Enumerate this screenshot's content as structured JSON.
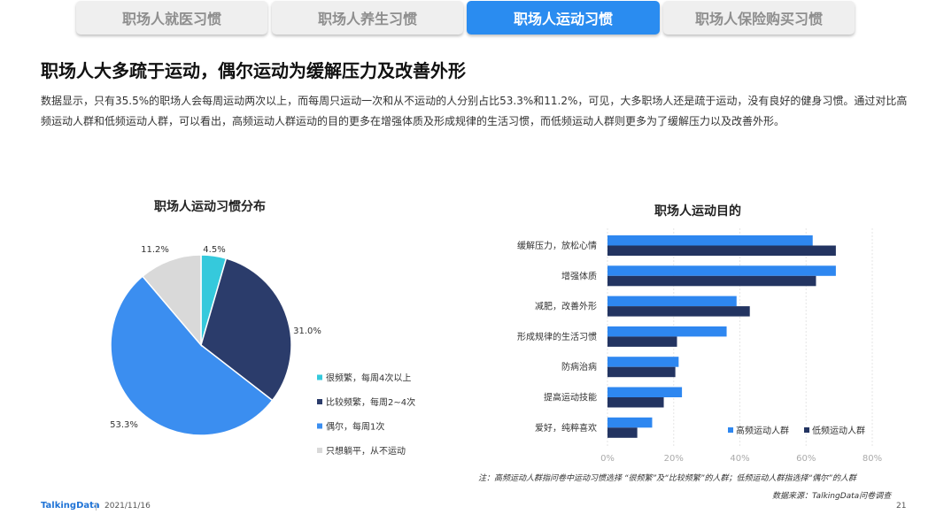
{
  "tabs": [
    {
      "label": "职场人就医习惯",
      "active": false
    },
    {
      "label": "职场人养生习惯",
      "active": false
    },
    {
      "label": "职场人运动习惯",
      "active": true
    },
    {
      "label": "职场人保险购买习惯",
      "active": false
    }
  ],
  "headline": "职场人大多疏于运动，偶尔运动为缓解压力及改善外形",
  "description": "数据显示，只有35.5%的职场人会每周运动两次以上，而每周只运动一次和从不运动的人分别占比53.3%和11.2%，可见，大多职场人还是疏于运动，没有良好的健身习惯。通过对比高频运动人群和低频运动人群，可以看出，高频运动人群运动的目的更多在增强体质及形成规律的生活习惯，而低频运动人群则更多为了缓解压力以及改善外形。",
  "chart_data": [
    {
      "type": "pie",
      "title": "职场人运动习惯分布",
      "categories": [
        "很频繁，每周4次以上",
        "比较频繁，每周2~4次",
        "偶尔，每周1次",
        "只想躺平，从不运动"
      ],
      "values": [
        4.5,
        31.0,
        53.3,
        11.2
      ],
      "value_labels": [
        "4.5%",
        "31.0%",
        "53.3%",
        "11.2%"
      ],
      "colors": [
        "#35c9dc",
        "#2b3c6b",
        "#3b8ef0",
        "#d9d9d9"
      ],
      "legend_position": "right"
    },
    {
      "type": "bar",
      "orientation": "horizontal",
      "title": "职场人运动目的",
      "categories": [
        "缓解压力，放松心情",
        "增强体质",
        "减肥，改善外形",
        "形成规律的生活习惯",
        "防病治病",
        "提高运动技能",
        "爱好，纯粹喜欢"
      ],
      "series": [
        {
          "name": "高频运动人群",
          "color": "#2e87f0",
          "values": [
            62,
            69,
            39,
            36,
            21.5,
            22.5,
            13.5
          ]
        },
        {
          "name": "低频运动人群",
          "color": "#233461",
          "values": [
            69,
            63,
            43,
            21,
            20.5,
            17,
            9
          ]
        }
      ],
      "xlim": [
        0,
        80
      ],
      "xticks": [
        "0%",
        "20%",
        "40%",
        "60%",
        "80%"
      ],
      "grid": true,
      "legend_position": "bottom-right"
    }
  ],
  "note": "注：高频运动人群指问卷中运动习惯选择 “很频繁”及“比较频繁”的人群；低频运动人群指选择“偶尔”的人群",
  "source": "数据来源：TalkingData问卷调查",
  "footer": {
    "brand": "TalkingData",
    "date": "2021/11/16",
    "page": "21"
  }
}
